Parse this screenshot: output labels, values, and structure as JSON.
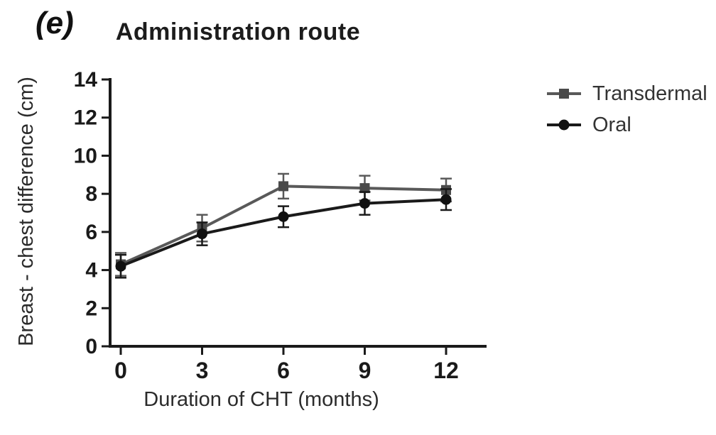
{
  "panel_label": "(e)",
  "chart_data": {
    "type": "line",
    "title": "Administration route",
    "xlabel": "Duration of CHT (months)",
    "ylabel": "Breast - chest difference (cm)",
    "x": [
      0,
      3,
      6,
      9,
      12
    ],
    "xticks": [
      "0",
      "3",
      "6",
      "9",
      "12"
    ],
    "yticks": [
      "0",
      "2",
      "4",
      "6",
      "8",
      "10",
      "12",
      "14"
    ],
    "xlim": [
      0,
      13.5
    ],
    "ylim": [
      0,
      14
    ],
    "grid": false,
    "error_bars": true,
    "legend_position": "right",
    "series": [
      {
        "name": "Transdermal",
        "marker": "square",
        "color": "#595959",
        "marker_color": "#4a4a4a",
        "values": [
          4.3,
          6.2,
          8.4,
          8.3,
          8.2
        ],
        "errors": [
          0.6,
          0.7,
          0.65,
          0.65,
          0.6
        ]
      },
      {
        "name": "Oral",
        "marker": "circle",
        "color": "#1a1a1a",
        "marker_color": "#111111",
        "values": [
          4.2,
          5.9,
          6.8,
          7.5,
          7.7
        ],
        "errors": [
          0.6,
          0.6,
          0.55,
          0.6,
          0.55
        ]
      }
    ],
    "axis_color": "#1a1a1a",
    "tick_label_color": "#1a1a1a",
    "axis_label_color": "#2b2b2b"
  }
}
